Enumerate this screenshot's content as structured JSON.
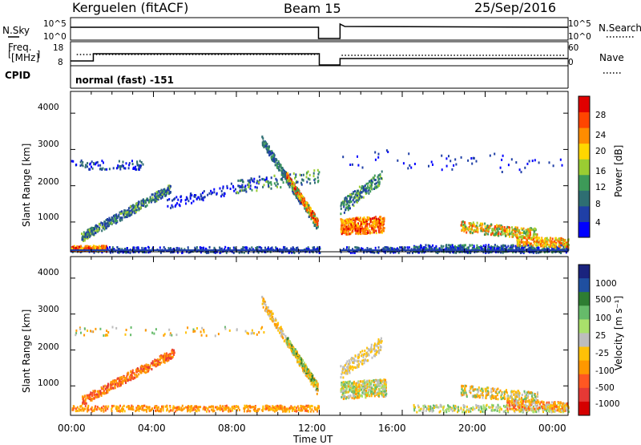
{
  "header": {
    "station": "Kerguelen (fitACF)",
    "beam": "Beam 15",
    "date": "25/Sep/2016"
  },
  "top_panels": {
    "nsky_label": "N.Sky",
    "nsearch_label": "N.Search",
    "freq_label_line1": "Freq.",
    "freq_label_line2": "[MHz]",
    "cpid_label": "CPID",
    "nave_label": "Nave",
    "nsky_ticks": [
      "10^5",
      "10^0"
    ],
    "nsearch_ticks": [
      "10^5",
      "10^0"
    ],
    "freq_ticks": [
      "18",
      "8"
    ],
    "nave_ticks": [
      "60",
      "0"
    ],
    "cpid_text": "normal (fast) -151"
  },
  "colors": {
    "power_scale": [
      "#0000ff",
      "#1f3fa6",
      "#2e6e72",
      "#3d9a58",
      "#9acd32",
      "#ffd700",
      "#ff8c00",
      "#ff4500",
      "#e00000"
    ],
    "velocity_scale": [
      "#1a237e",
      "#1f4fa0",
      "#2e7d32",
      "#66bb6a",
      "#a9e06b",
      "#bdbdbd",
      "#ffc107",
      "#ff9800",
      "#ff5722",
      "#e53935",
      "#d50000"
    ]
  },
  "chart_data": [
    {
      "type": "heatmap",
      "name": "power",
      "ylabel": "Slant Range [km]",
      "yticks": [
        "1000",
        "2000",
        "3000",
        "4000"
      ],
      "ylim": [
        180,
        4600
      ],
      "xlabel": "Time UT",
      "xticks": [
        "00:00",
        "04:00",
        "08:00",
        "12:00",
        "16:00",
        "20:00",
        "00:00"
      ],
      "xlim_hours": [
        0,
        24
      ],
      "colorbar_label": "Power [dB]",
      "colorbar_ticks": [
        "4",
        "8",
        "12",
        "16",
        "20",
        "24",
        "28"
      ],
      "colorbar_range": [
        0,
        30
      ],
      "data_gap_hours": [
        12.0,
        13.0
      ],
      "features": [
        {
          "desc_hours": [
            0,
            4.5
          ],
          "range_km": [
            600,
            2000
          ],
          "level": "moderate"
        },
        {
          "desc_hours": [
            10.5,
            12.0
          ],
          "range_km": [
            900,
            2300
          ],
          "level": "strong"
        },
        {
          "desc_hours": [
            13.0,
            15.0
          ],
          "range_km": [
            800,
            1800
          ],
          "level": "strong"
        },
        {
          "desc_hours": [
            19.0,
            22.5
          ],
          "range_km": [
            400,
            1200
          ],
          "level": "strong"
        }
      ]
    },
    {
      "type": "heatmap",
      "name": "velocity",
      "ylabel": "Slant Range [km]",
      "yticks": [
        "1000",
        "2000",
        "3000",
        "4000"
      ],
      "ylim": [
        180,
        4600
      ],
      "xlabel": "Time UT",
      "xticks": [
        "00:00",
        "04:00",
        "08:00",
        "12:00",
        "16:00",
        "20:00",
        "00:00"
      ],
      "xlim_hours": [
        0,
        24
      ],
      "colorbar_label": "Velocity [m s⁻¹]",
      "colorbar_ticks": [
        "1000",
        "500",
        "100",
        "25",
        "-25",
        "-100",
        "-500",
        "-1000"
      ],
      "data_gap_hours": [
        12.0,
        13.0
      ]
    }
  ],
  "xaxis": {
    "title": "Time UT",
    "ticks": [
      "00:00",
      "04:00",
      "08:00",
      "12:00",
      "16:00",
      "20:00",
      "00:00"
    ]
  }
}
